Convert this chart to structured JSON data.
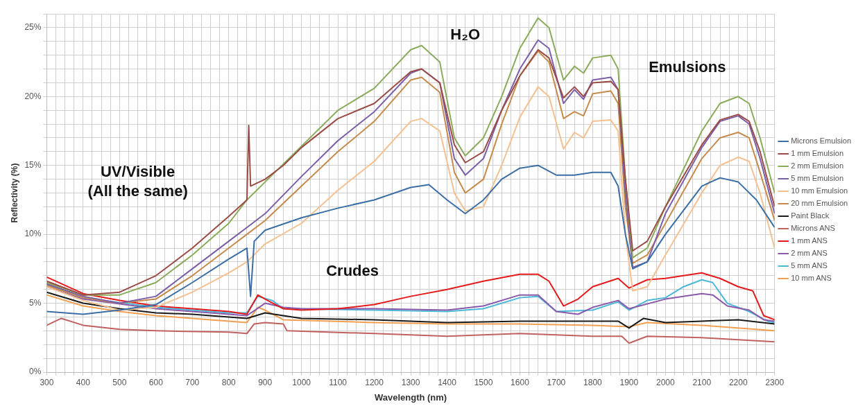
{
  "chart_data": {
    "type": "line",
    "xlabel": "Wavelength (nm)",
    "ylabel": "Reflectivity (%)",
    "grid": true,
    "legend": "right",
    "marker": "none",
    "line_style": "solid",
    "xlim": [
      300,
      2300
    ],
    "ylim": [
      0,
      26
    ],
    "xticks": [
      300,
      {
        "value": 325,
        "label": null
      },
      {
        "value": 350,
        "label": null
      },
      {
        "value": 375,
        "label": null
      },
      400,
      {
        "value": 425,
        "label": null
      },
      {
        "value": 450,
        "label": null
      },
      {
        "value": 475,
        "label": null
      },
      500,
      {
        "value": 525,
        "label": null
      },
      {
        "value": 550,
        "label": null
      },
      {
        "value": 575,
        "label": null
      },
      600,
      {
        "value": 625,
        "label": null
      },
      {
        "value": 650,
        "label": null
      },
      {
        "value": 675,
        "label": null
      },
      700,
      {
        "value": 725,
        "label": null
      },
      {
        "value": 750,
        "label": null
      },
      {
        "value": 775,
        "label": null
      },
      800,
      {
        "value": 825,
        "label": null
      },
      {
        "value": 850,
        "label": null
      },
      {
        "value": 875,
        "label": null
      },
      900,
      {
        "value": 925,
        "label": null
      },
      {
        "value": 950,
        "label": null
      },
      {
        "value": 975,
        "label": null
      },
      1000,
      {
        "value": 1025,
        "label": null
      },
      {
        "value": 1050,
        "label": null
      },
      {
        "value": 1075,
        "label": null
      },
      1100,
      {
        "value": 1125,
        "label": null
      },
      {
        "value": 1150,
        "label": null
      },
      {
        "value": 1175,
        "label": null
      },
      1200,
      {
        "value": 1225,
        "label": null
      },
      {
        "value": 1250,
        "label": null
      },
      {
        "value": 1275,
        "label": null
      },
      1300,
      {
        "value": 1325,
        "label": null
      },
      {
        "value": 1350,
        "label": null
      },
      {
        "value": 1375,
        "label": null
      },
      1400,
      {
        "value": 1425,
        "label": null
      },
      {
        "value": 1450,
        "label": null
      },
      {
        "value": 1475,
        "label": null
      },
      1500,
      {
        "value": 1525,
        "label": null
      },
      {
        "value": 1550,
        "label": null
      },
      {
        "value": 1575,
        "label": null
      },
      1600,
      {
        "value": 1625,
        "label": null
      },
      {
        "value": 1650,
        "label": null
      },
      {
        "value": 1675,
        "label": null
      },
      1700,
      {
        "value": 1725,
        "label": null
      },
      {
        "value": 1750,
        "label": null
      },
      {
        "value": 1775,
        "label": null
      },
      1800,
      {
        "value": 1825,
        "label": null
      },
      {
        "value": 1850,
        "label": null
      },
      {
        "value": 1875,
        "label": null
      },
      1900,
      {
        "value": 1925,
        "label": null
      },
      {
        "value": 1950,
        "label": null
      },
      {
        "value": 1975,
        "label": null
      },
      2000,
      {
        "value": 2025,
        "label": null
      },
      {
        "value": 2050,
        "label": null
      },
      {
        "value": 2075,
        "label": null
      },
      2100,
      {
        "value": 2125,
        "label": null
      },
      {
        "value": 2150,
        "label": null
      },
      {
        "value": 2175,
        "label": null
      },
      2200,
      {
        "value": 2225,
        "label": null
      },
      {
        "value": 2250,
        "label": null
      },
      {
        "value": 2275,
        "label": null
      },
      2300
    ],
    "yticks": [
      {
        "value": 0,
        "label": "0%"
      },
      {
        "value": 1,
        "label": null
      },
      {
        "value": 2,
        "label": null
      },
      {
        "value": 3,
        "label": null
      },
      {
        "value": 4,
        "label": null
      },
      {
        "value": 5,
        "label": "5%"
      },
      {
        "value": 6,
        "label": null
      },
      {
        "value": 7,
        "label": null
      },
      {
        "value": 8,
        "label": null
      },
      {
        "value": 9,
        "label": null
      },
      {
        "value": 10,
        "label": "10%"
      },
      {
        "value": 11,
        "label": null
      },
      {
        "value": 12,
        "label": null
      },
      {
        "value": 13,
        "label": null
      },
      {
        "value": 14,
        "label": null
      },
      {
        "value": 15,
        "label": "15%"
      },
      {
        "value": 16,
        "label": null
      },
      {
        "value": 17,
        "label": null
      },
      {
        "value": 18,
        "label": null
      },
      {
        "value": 19,
        "label": null
      },
      {
        "value": 20,
        "label": "20%"
      },
      {
        "value": 21,
        "label": null
      },
      {
        "value": 22,
        "label": null
      },
      {
        "value": 23,
        "label": null
      },
      {
        "value": 24,
        "label": null
      },
      {
        "value": 25,
        "label": "25%"
      },
      {
        "value": 26,
        "label": null
      }
    ],
    "annotations": [
      "UV/Visible\n(All the same)",
      "H₂O",
      "Emulsions",
      "Crudes"
    ],
    "series": [
      {
        "name": "Microns Emulsion",
        "color": "#3a6ea5",
        "x": [
          300,
          400,
          500,
          600,
          700,
          800,
          850,
          860,
          870,
          900,
          1000,
          1100,
          1200,
          1300,
          1350,
          1400,
          1450,
          1500,
          1550,
          1600,
          1650,
          1700,
          1750,
          1800,
          1850,
          1870,
          1890,
          1910,
          1950,
          2000,
          2100,
          2150,
          2200,
          2250,
          2300
        ],
        "values": [
          4.4,
          4.2,
          4.5,
          4.9,
          6.5,
          8.2,
          9,
          5.5,
          9.5,
          10.3,
          11.2,
          11.9,
          12.5,
          13.4,
          13.6,
          12.5,
          11.5,
          12.5,
          14,
          14.8,
          15,
          14.3,
          14.3,
          14.5,
          14.5,
          13.5,
          10,
          7.5,
          8,
          10,
          13.5,
          14.1,
          13.8,
          12.5,
          10.5
        ]
      },
      {
        "name": "1 mm Emulsion",
        "color": "#9b4b45",
        "x": [
          300,
          400,
          500,
          600,
          700,
          800,
          850,
          855,
          860,
          900,
          950,
          1000,
          1100,
          1200,
          1300,
          1330,
          1380,
          1420,
          1450,
          1500,
          1550,
          1600,
          1650,
          1680,
          1720,
          1750,
          1775,
          1800,
          1850,
          1870,
          1890,
          1910,
          1950,
          2000,
          2100,
          2150,
          2200,
          2230,
          2260,
          2300
        ],
        "values": [
          6.6,
          5.6,
          5.8,
          7,
          9,
          11.3,
          12.5,
          17.9,
          13.5,
          14,
          15,
          16.3,
          18.4,
          19.5,
          21.8,
          22,
          21,
          16.5,
          15.2,
          16,
          19,
          21.5,
          23.4,
          22.8,
          19.9,
          20.7,
          20,
          21,
          21.1,
          20.5,
          14,
          8.8,
          9.5,
          12,
          16.5,
          18.3,
          18.7,
          18.2,
          16,
          12
        ]
      },
      {
        "name": "2 mm Emulsion",
        "color": "#8aab5a",
        "x": [
          300,
          400,
          500,
          600,
          700,
          800,
          850,
          900,
          1000,
          1100,
          1200,
          1300,
          1330,
          1380,
          1420,
          1450,
          1500,
          1550,
          1600,
          1650,
          1680,
          1720,
          1750,
          1775,
          1800,
          1850,
          1870,
          1890,
          1910,
          1950,
          2000,
          2100,
          2150,
          2200,
          2230,
          2260,
          2300
        ],
        "values": [
          6.5,
          5.6,
          5.6,
          6.5,
          8.5,
          10.8,
          12.5,
          13.8,
          16.4,
          19,
          20.6,
          23.4,
          23.7,
          22.5,
          17,
          15.7,
          17,
          20,
          23.5,
          25.7,
          25,
          21.2,
          22.2,
          21.7,
          22.8,
          23,
          22,
          14,
          8.3,
          9,
          12,
          17.5,
          19.5,
          20,
          19.5,
          17,
          13
        ]
      },
      {
        "name": "5 mm Emulsion",
        "color": "#7a5ea8",
        "x": [
          300,
          400,
          500,
          600,
          700,
          800,
          850,
          900,
          1000,
          1100,
          1200,
          1300,
          1330,
          1380,
          1420,
          1450,
          1500,
          1550,
          1600,
          1650,
          1680,
          1720,
          1750,
          1775,
          1800,
          1850,
          1870,
          1890,
          1910,
          1950,
          2000,
          2100,
          2150,
          2200,
          2230,
          2260,
          2300
        ],
        "values": [
          6.4,
          5.5,
          5,
          5.5,
          7.5,
          9.5,
          10.5,
          11.5,
          14.2,
          16.8,
          18.9,
          21.7,
          22,
          21,
          15.5,
          14.3,
          15.5,
          19,
          22,
          24.1,
          23.5,
          19.5,
          20.5,
          19.8,
          21.2,
          21.4,
          20.5,
          13,
          7.6,
          8,
          11.5,
          16.3,
          18.2,
          18.6,
          18,
          15.5,
          11.5
        ]
      },
      {
        "name": "10 mm Emulsion",
        "color": "#f5c08f",
        "x": [
          300,
          400,
          500,
          600,
          700,
          800,
          850,
          900,
          1000,
          1100,
          1200,
          1300,
          1330,
          1380,
          1420,
          1450,
          1500,
          1550,
          1600,
          1650,
          1680,
          1720,
          1750,
          1775,
          1800,
          1850,
          1870,
          1890,
          1910,
          1950,
          2000,
          2100,
          2150,
          2200,
          2230,
          2260,
          2300
        ],
        "values": [
          6.2,
          5.2,
          4.5,
          4.7,
          5.8,
          7.2,
          8,
          9.3,
          10.8,
          13.2,
          15.3,
          18.2,
          18.4,
          17.5,
          13,
          11.7,
          12,
          15,
          18.5,
          20.7,
          20,
          16.2,
          17.4,
          17,
          18.2,
          18.3,
          17.5,
          10,
          5.9,
          6.2,
          8.5,
          13,
          15,
          15.6,
          15.3,
          13,
          9
        ]
      },
      {
        "name": "20 mm Emulsion",
        "color": "#c68a4a",
        "x": [
          300,
          400,
          500,
          600,
          700,
          800,
          850,
          900,
          1000,
          1100,
          1200,
          1300,
          1330,
          1380,
          1420,
          1450,
          1500,
          1550,
          1600,
          1650,
          1680,
          1720,
          1750,
          1775,
          1800,
          1850,
          1870,
          1890,
          1910,
          1950,
          2000,
          2100,
          2150,
          2200,
          2230,
          2260,
          2300
        ],
        "values": [
          6.3,
          5.4,
          5,
          5.3,
          7,
          9,
          10,
          11,
          13.5,
          16,
          18.2,
          21.2,
          21.4,
          20.3,
          14.5,
          13,
          14,
          18,
          21.5,
          23.3,
          22.5,
          18.4,
          18.9,
          18.6,
          20.2,
          20.4,
          19.5,
          12,
          7.9,
          8.5,
          10.8,
          15.5,
          17,
          17.4,
          17,
          14.5,
          11
        ]
      },
      {
        "name": "Paint Black",
        "color": "#1a1a1a",
        "x": [
          300,
          400,
          500,
          600,
          700,
          800,
          850,
          900,
          950,
          1000,
          1200,
          1400,
          1600,
          1800,
          1870,
          1900,
          1940,
          2000,
          2200,
          2300
        ],
        "values": [
          5.8,
          5,
          4.6,
          4.3,
          4.2,
          4,
          3.9,
          4.3,
          4.1,
          3.9,
          3.8,
          3.6,
          3.7,
          3.7,
          3.7,
          3.2,
          3.9,
          3.6,
          3.8,
          3.5
        ]
      },
      {
        "name": "Microns ANS",
        "color": "#c0605f",
        "x": [
          300,
          340,
          400,
          500,
          600,
          800,
          850,
          870,
          900,
          950,
          960,
          1200,
          1400,
          1600,
          1800,
          1880,
          1900,
          1950,
          2100,
          2300
        ],
        "values": [
          3.4,
          3.9,
          3.4,
          3.1,
          3,
          2.9,
          2.8,
          3.5,
          3.6,
          3.5,
          3,
          2.8,
          2.6,
          2.8,
          2.6,
          2.6,
          2.1,
          2.6,
          2.5,
          2.2
        ]
      },
      {
        "name": "1 mm ANS",
        "color": "#e41a1c",
        "x": [
          300,
          400,
          500,
          600,
          700,
          800,
          850,
          880,
          900,
          950,
          1000,
          1100,
          1200,
          1300,
          1400,
          1500,
          1600,
          1650,
          1680,
          1720,
          1760,
          1800,
          1870,
          1900,
          1950,
          2000,
          2100,
          2150,
          2200,
          2240,
          2270,
          2300
        ],
        "values": [
          6.9,
          5.7,
          5.2,
          4.8,
          4.6,
          4.4,
          4.2,
          5.6,
          5.3,
          4.6,
          4.5,
          4.6,
          4.9,
          5.5,
          6,
          6.6,
          7.1,
          7.1,
          6.6,
          4.8,
          5.3,
          6.2,
          6.8,
          6.1,
          6.7,
          6.8,
          7.2,
          6.8,
          6.2,
          5.9,
          4.1,
          3.8
        ]
      },
      {
        "name": "2 mm ANS",
        "color": "#8a5aaa",
        "x": [
          300,
          400,
          600,
          800,
          850,
          900,
          950,
          1000,
          1200,
          1400,
          1500,
          1600,
          1650,
          1700,
          1760,
          1800,
          1870,
          1900,
          2000,
          2100,
          2130,
          2170,
          2230,
          2270,
          2300
        ],
        "values": [
          6.2,
          5.3,
          4.6,
          4.2,
          4.1,
          5,
          4.7,
          4.6,
          4.6,
          4.5,
          4.8,
          5.6,
          5.6,
          4.4,
          4.2,
          4.7,
          5.2,
          4.6,
          5.3,
          5.7,
          5.6,
          4.8,
          4.5,
          3.8,
          3.7
        ]
      },
      {
        "name": "5 mm ANS",
        "color": "#4bb8d8",
        "x": [
          300,
          400,
          600,
          800,
          850,
          880,
          920,
          950,
          1200,
          1400,
          1500,
          1600,
          1650,
          1700,
          1800,
          1870,
          1900,
          1950,
          2000,
          2050,
          2100,
          2130,
          2170,
          2230,
          2280,
          2300
        ],
        "values": [
          6.4,
          5.4,
          4.7,
          4.3,
          4.3,
          5.5,
          5.2,
          4.6,
          4.5,
          4.4,
          4.6,
          5.4,
          5.5,
          4.4,
          4.5,
          5.1,
          4.5,
          5.2,
          5.4,
          6.2,
          6.7,
          6.5,
          5,
          4.4,
          3.7,
          3.6
        ]
      },
      {
        "name": "10 mm ANS",
        "color": "#f0a050",
        "x": [
          300,
          400,
          500,
          600,
          800,
          850,
          880,
          900,
          950,
          1200,
          1400,
          1600,
          1800,
          1900,
          1950,
          2100,
          2300
        ],
        "values": [
          5.6,
          4.8,
          4.4,
          4.1,
          3.7,
          3.6,
          4.7,
          4.5,
          3.8,
          3.6,
          3.5,
          3.5,
          3.4,
          3.3,
          3.6,
          3.4,
          3
        ]
      }
    ]
  }
}
